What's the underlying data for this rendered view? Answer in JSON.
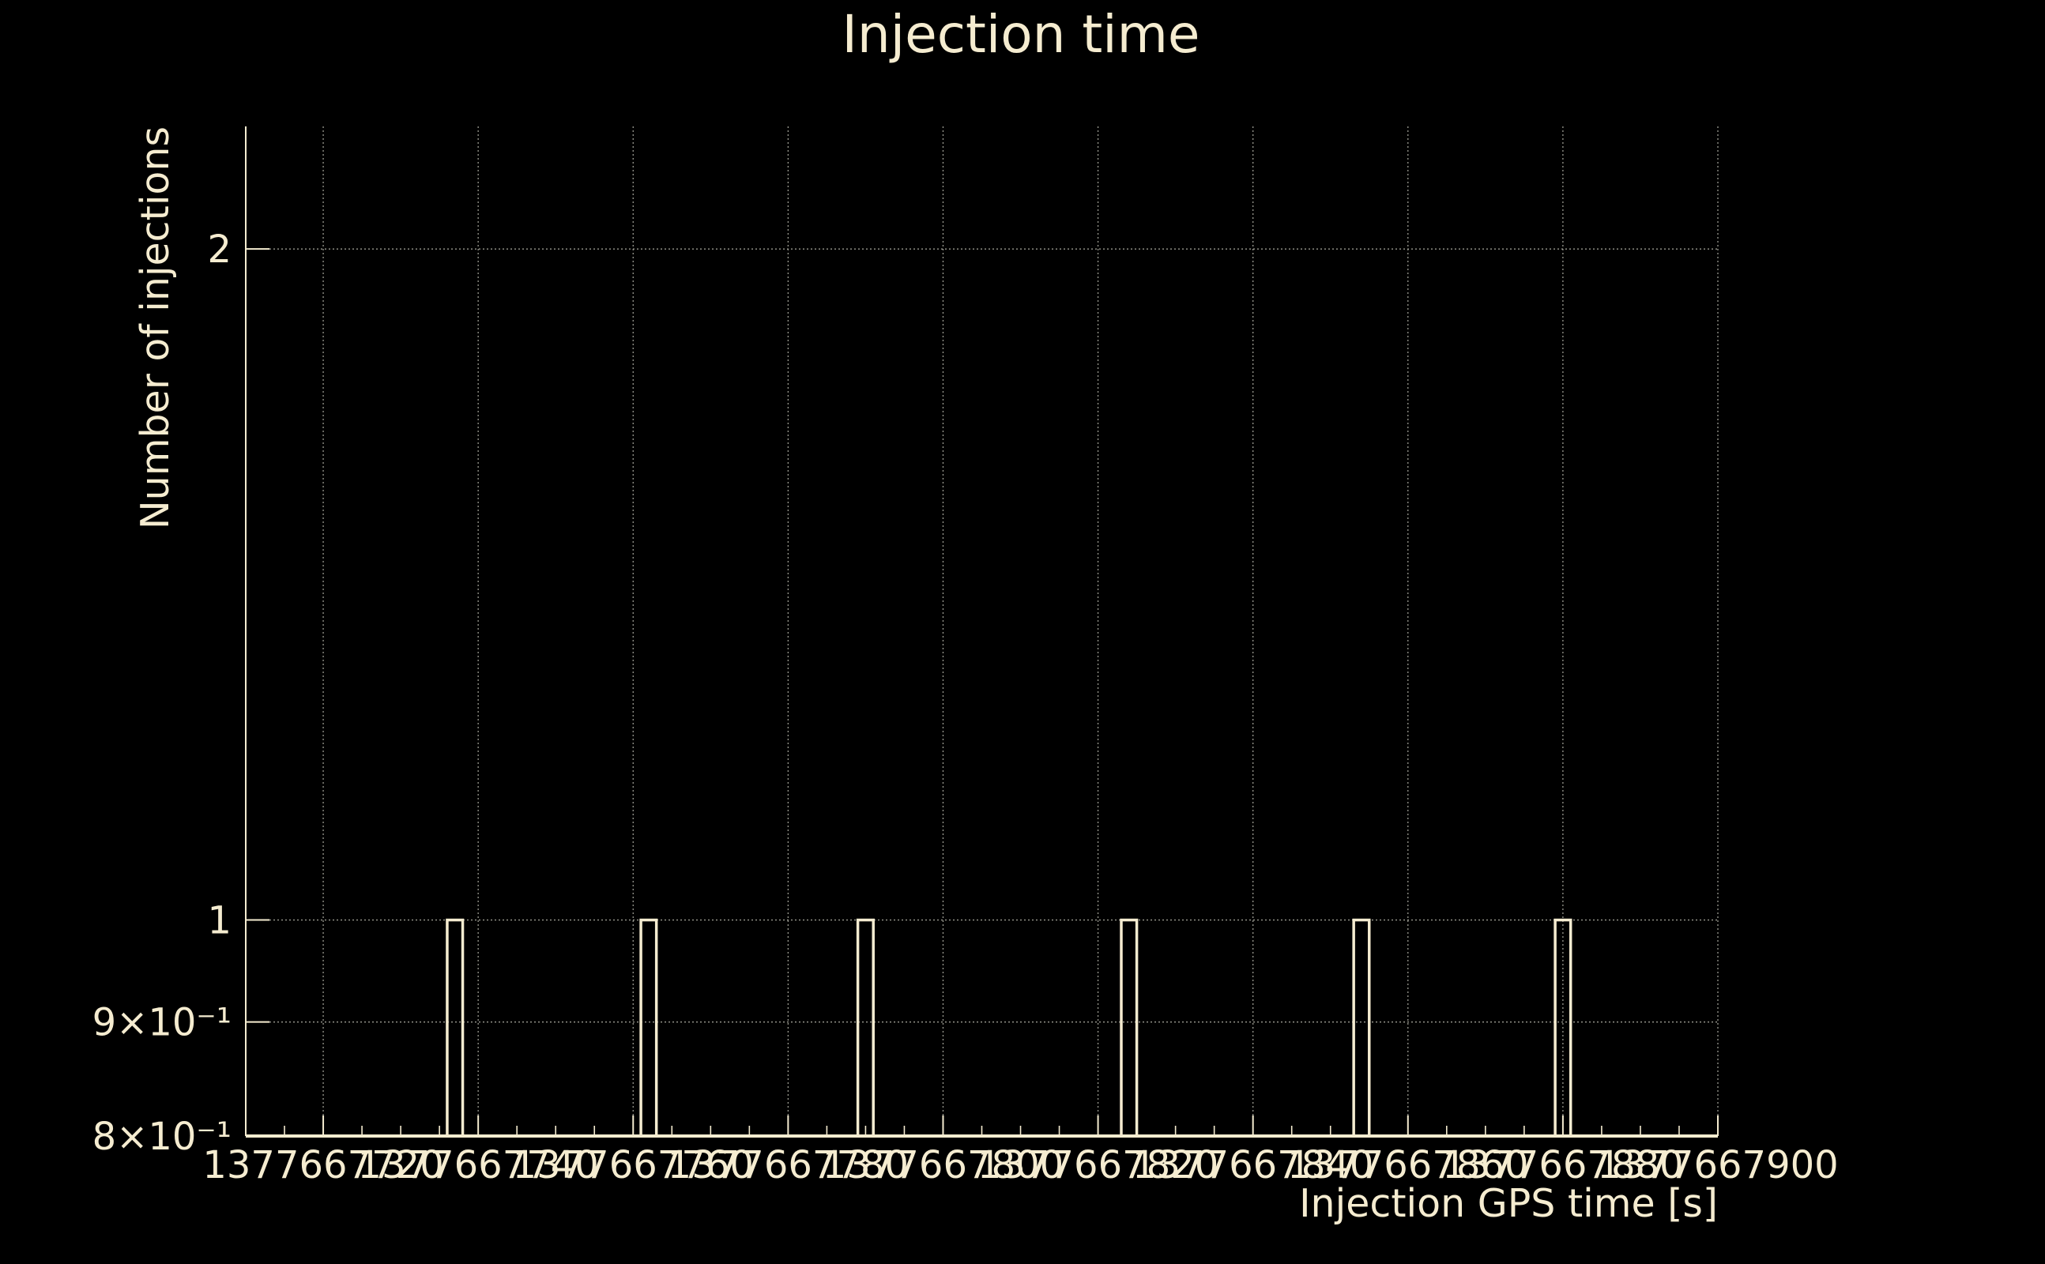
{
  "chart_data": {
    "type": "bar",
    "title": "Injection time",
    "xlabel": "Injection GPS time [s]",
    "ylabel": "Number of injections",
    "xlim": [
      1377667710,
      1377667900
    ],
    "ylim": [
      0.8,
      2.27
    ],
    "yscale": "log",
    "grid": true,
    "x_ticks": [
      1377667720,
      1377667740,
      1377667760,
      1377667780,
      1377667800,
      1377667820,
      1377667840,
      1377667860,
      1377667880,
      1377667900
    ],
    "x_tick_labels": [
      "1377667720",
      "1377667740",
      "1377667760",
      "1377667780",
      "1377667800",
      "1377667820",
      "1377667840",
      "1377667860",
      "1377667880",
      "1377667900"
    ],
    "y_ticks": [
      0.8,
      0.9,
      1,
      2
    ],
    "y_tick_labels": [
      "8×10⁻¹",
      "9×10⁻¹",
      "1",
      "2"
    ],
    "bin_width": 2,
    "bins": [
      {
        "x_start": 1377667736,
        "value": 1
      },
      {
        "x_start": 1377667761,
        "value": 1
      },
      {
        "x_start": 1377667789,
        "value": 1
      },
      {
        "x_start": 1377667823,
        "value": 1
      },
      {
        "x_start": 1377667853,
        "value": 1
      },
      {
        "x_start": 1377667879,
        "value": 1
      }
    ]
  },
  "colors": {
    "background": "#000000",
    "foreground": "#f5ecd0",
    "grid": "#9a9a90"
  }
}
